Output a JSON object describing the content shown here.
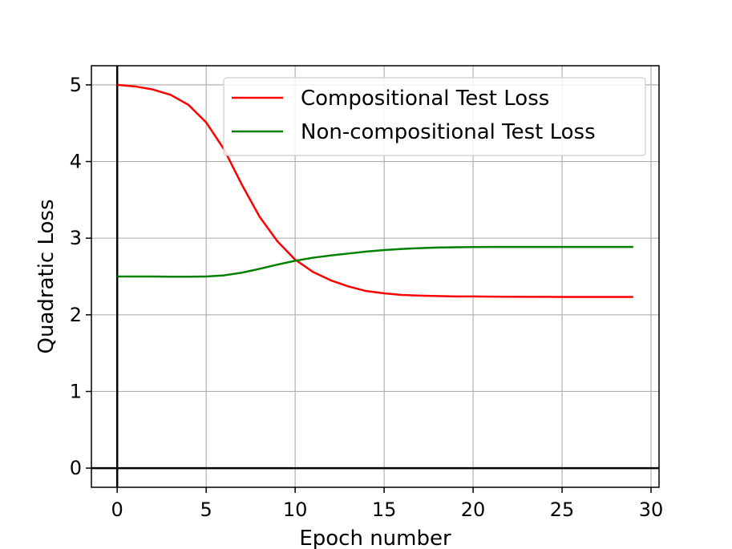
{
  "chart_data": {
    "type": "line",
    "title": "",
    "xlabel": "Epoch number",
    "ylabel": "Quadratic Loss",
    "xlim": [
      -1.45,
      30.45
    ],
    "ylim": [
      -0.25,
      5.25
    ],
    "xticks": [
      0,
      5,
      10,
      15,
      20,
      25,
      30
    ],
    "yticks": [
      0,
      1,
      2,
      3,
      4,
      5
    ],
    "grid": true,
    "legend_position": "top-right",
    "reference_lines": {
      "x": 0,
      "y": 0
    },
    "x": [
      0,
      1,
      2,
      3,
      4,
      5,
      6,
      7,
      8,
      9,
      10,
      11,
      12,
      13,
      14,
      15,
      16,
      17,
      18,
      19,
      20,
      21,
      22,
      23,
      24,
      25,
      26,
      27,
      28,
      29
    ],
    "series": [
      {
        "name": "Compositional Test Loss",
        "color": "#ff0000",
        "values": [
          5.0,
          4.98,
          4.94,
          4.87,
          4.74,
          4.51,
          4.16,
          3.7,
          3.28,
          2.96,
          2.72,
          2.56,
          2.45,
          2.37,
          2.31,
          2.28,
          2.26,
          2.25,
          2.245,
          2.24,
          2.24,
          2.237,
          2.236,
          2.235,
          2.235,
          2.234,
          2.234,
          2.234,
          2.234,
          2.234
        ]
      },
      {
        "name": "Non-compositional Test Loss",
        "color": "#008000",
        "values": [
          2.5,
          2.5,
          2.5,
          2.498,
          2.497,
          2.5,
          2.515,
          2.55,
          2.6,
          2.655,
          2.705,
          2.745,
          2.775,
          2.8,
          2.825,
          2.845,
          2.86,
          2.87,
          2.878,
          2.882,
          2.884,
          2.885,
          2.886,
          2.886,
          2.886,
          2.886,
          2.886,
          2.886,
          2.886,
          2.886
        ]
      }
    ]
  }
}
